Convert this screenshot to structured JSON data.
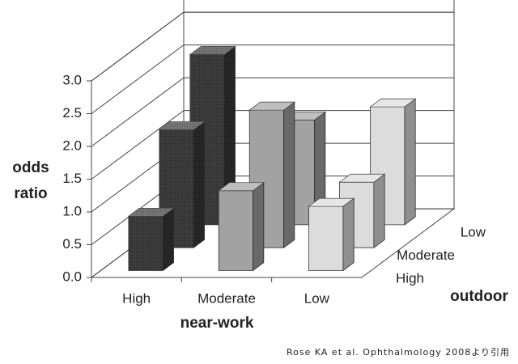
{
  "chart_data": {
    "type": "bar3d",
    "ylabel": [
      "odds",
      "ratio"
    ],
    "xlabel": "near-work",
    "zlabel": "outdoor",
    "source": "Rose KA et al. Ophthalmology 2008より引用",
    "categories": [
      "High",
      "Moderate",
      "Low"
    ],
    "category_colors": [
      "#3c3c3c",
      "#a2a2a2",
      "#dcdcdc"
    ],
    "series": [
      {
        "name": "High",
        "values": [
          0.83,
          1.22,
          0.98
        ]
      },
      {
        "name": "Moderate",
        "values": [
          1.8,
          2.1,
          1.0
        ]
      },
      {
        "name": "Low",
        "values": [
          2.6,
          1.6,
          1.8
        ]
      }
    ],
    "ylim": [
      0,
      3.0
    ],
    "yticks": [
      {
        "value": 0,
        "label": "0.0"
      },
      0.5,
      {
        "value": 1,
        "label": "1.0"
      },
      1.5,
      {
        "value": 2,
        "label": "2.0"
      },
      2.5,
      {
        "value": 3,
        "label": "3.0"
      }
    ],
    "grid": true
  }
}
